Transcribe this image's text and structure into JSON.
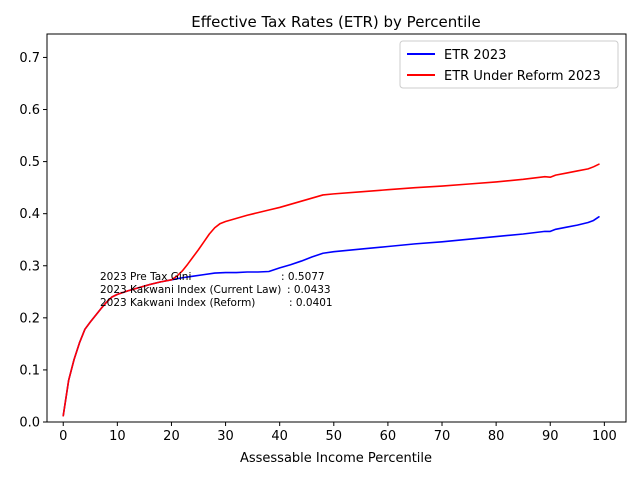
{
  "chart_data": {
    "type": "line",
    "title": "Effective Tax Rates (ETR) by Percentile",
    "xlabel": "Assessable Income Percentile",
    "ylabel": "",
    "xlim": [
      -3,
      104
    ],
    "ylim": [
      0.0,
      0.745
    ],
    "xticks": [
      0,
      10,
      20,
      30,
      40,
      50,
      60,
      70,
      80,
      90,
      100
    ],
    "yticks": [
      0.0,
      0.1,
      0.2,
      0.3,
      0.4,
      0.5,
      0.6,
      0.7
    ],
    "grid": false,
    "legend_position": "top-right",
    "series": [
      {
        "name": "ETR 2023",
        "color": "#0000ff",
        "x": [
          0,
          1,
          2,
          3,
          4,
          5,
          6,
          7,
          8,
          9,
          10,
          12,
          14,
          16,
          18,
          20,
          22,
          24,
          26,
          28,
          30,
          32,
          34,
          36,
          38,
          40,
          42,
          44,
          46,
          48,
          50,
          55,
          60,
          65,
          70,
          75,
          80,
          85,
          89,
          90,
          91,
          93,
          95,
          97,
          98,
          99
        ],
        "y": [
          0.012,
          0.08,
          0.12,
          0.152,
          0.178,
          0.192,
          0.205,
          0.218,
          0.23,
          0.24,
          0.245,
          0.252,
          0.258,
          0.264,
          0.269,
          0.273,
          0.277,
          0.28,
          0.283,
          0.286,
          0.287,
          0.287,
          0.288,
          0.288,
          0.289,
          0.296,
          0.302,
          0.309,
          0.317,
          0.324,
          0.327,
          0.332,
          0.337,
          0.342,
          0.346,
          0.351,
          0.356,
          0.361,
          0.366,
          0.366,
          0.37,
          0.374,
          0.378,
          0.383,
          0.387,
          0.394
        ]
      },
      {
        "name": "ETR Under Reform 2023",
        "color": "#ff0000",
        "x": [
          0,
          1,
          2,
          3,
          4,
          5,
          6,
          7,
          8,
          9,
          10,
          12,
          14,
          16,
          18,
          20,
          21,
          22,
          23,
          24,
          25,
          26,
          27,
          28,
          29,
          30,
          32,
          34,
          36,
          38,
          40,
          42,
          44,
          46,
          48,
          50,
          55,
          60,
          65,
          70,
          75,
          80,
          85,
          89,
          90,
          91,
          93,
          95,
          97,
          98,
          99
        ],
        "y": [
          0.012,
          0.08,
          0.12,
          0.152,
          0.178,
          0.192,
          0.205,
          0.218,
          0.23,
          0.24,
          0.245,
          0.252,
          0.258,
          0.264,
          0.269,
          0.273,
          0.28,
          0.29,
          0.303,
          0.317,
          0.331,
          0.346,
          0.361,
          0.373,
          0.381,
          0.385,
          0.391,
          0.397,
          0.402,
          0.407,
          0.412,
          0.418,
          0.424,
          0.43,
          0.436,
          0.438,
          0.442,
          0.446,
          0.45,
          0.453,
          0.457,
          0.461,
          0.466,
          0.471,
          0.47,
          0.474,
          0.478,
          0.482,
          0.486,
          0.49,
          0.495
        ]
      }
    ],
    "annotation": {
      "lines": [
        {
          "label": "2023 Pre Tax Gini",
          "value": ": 0.5077"
        },
        {
          "label": "2023 Kakwani Index (Current Law)",
          "value": ": 0.0433"
        },
        {
          "label": "2023 Kakwani Index (Reform)",
          "value": ": 0.0401"
        }
      ]
    }
  }
}
